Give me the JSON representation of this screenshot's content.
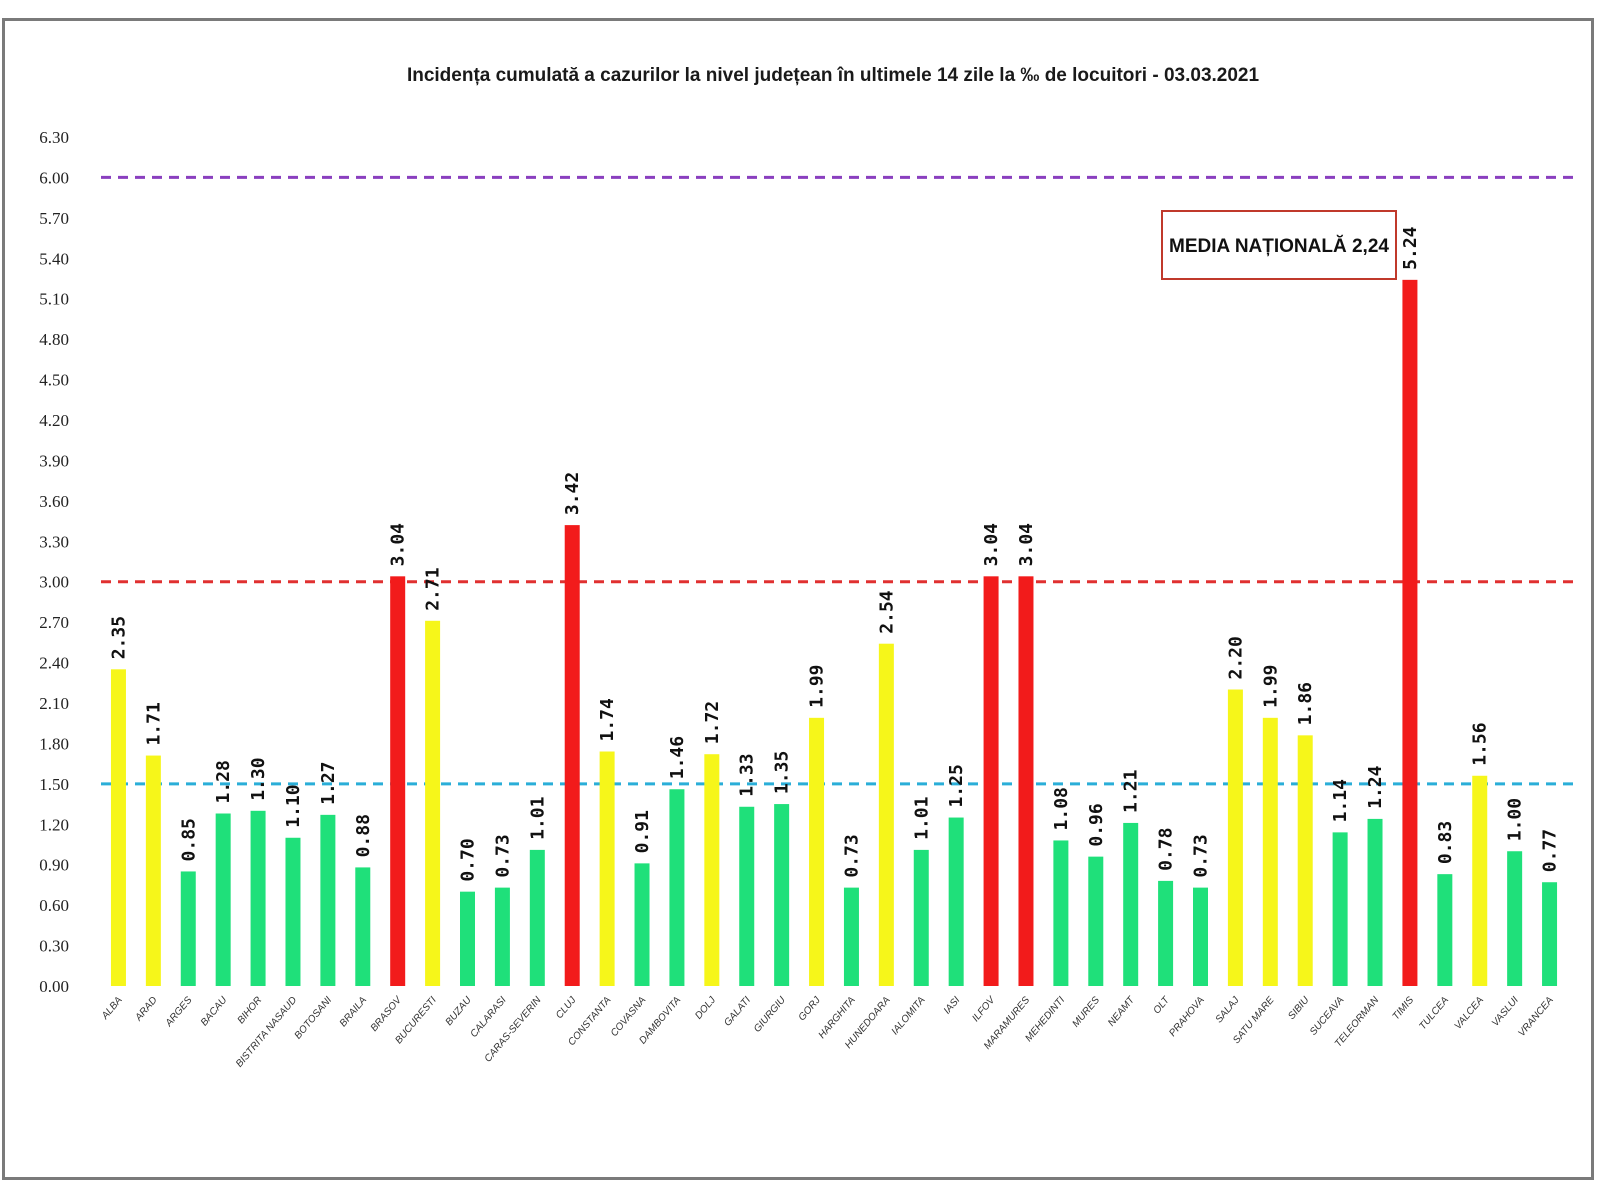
{
  "colors": {
    "green": "#1fe07a",
    "yellow": "#f6f61a",
    "red": "#f21b1b",
    "line_purple": "#8a3fbf",
    "line_red": "#e03030",
    "line_cyan": "#2aaed8",
    "annotation_border": "#c0392b"
  },
  "chart_data": {
    "type": "bar",
    "title": "Incidența cumulată a cazurilor la nivel județean în ultimele 14 zile la ‰ de locuitori - 03.03.2021",
    "xlabel": "",
    "ylabel": "",
    "ylim": [
      0,
      6.3
    ],
    "yticks": [
      "0.00",
      "0.30",
      "0.60",
      "0.90",
      "1.20",
      "1.50",
      "1.80",
      "2.10",
      "2.40",
      "2.70",
      "3.00",
      "3.30",
      "3.60",
      "3.90",
      "4.20",
      "4.50",
      "4.80",
      "5.10",
      "5.40",
      "5.70",
      "6.00",
      "6.30"
    ],
    "grid": false,
    "categories": [
      "ALBA",
      "ARAD",
      "ARGES",
      "BACAU",
      "BIHOR",
      "BISTRITA NASAUD",
      "BOTOSANI",
      "BRAILA",
      "BRASOV",
      "BUCURESTI",
      "BUZAU",
      "CALARASI",
      "CARAS-SEVERIN",
      "CLUJ",
      "CONSTANTA",
      "COVASNA",
      "DAMBOVITA",
      "DOLJ",
      "GALATI",
      "GIURGIU",
      "GORJ",
      "HARGHITA",
      "HUNEDOARA",
      "IALOMITA",
      "IASI",
      "ILFOV",
      "MARAMURES",
      "MEHEDINTI",
      "MURES",
      "NEAMT",
      "OLT",
      "PRAHOVA",
      "SALAJ",
      "SATU MARE",
      "SIBIU",
      "SUCEAVA",
      "TELEORMAN",
      "TIMIS",
      "TULCEA",
      "VALCEA",
      "VASLUI",
      "VRANCEA"
    ],
    "values": [
      2.35,
      1.71,
      0.85,
      1.28,
      1.3,
      1.1,
      1.27,
      0.88,
      3.04,
      2.71,
      0.7,
      0.73,
      1.01,
      3.42,
      1.74,
      0.91,
      1.46,
      1.72,
      1.33,
      1.35,
      1.99,
      0.73,
      2.54,
      1.01,
      1.25,
      3.04,
      3.04,
      1.08,
      0.96,
      1.21,
      0.78,
      0.73,
      2.2,
      1.99,
      1.86,
      1.14,
      1.24,
      5.24,
      0.83,
      1.56,
      1.0,
      0.77
    ],
    "value_labels": [
      "2.35",
      "1.71",
      "0.85",
      "1.28",
      "1.30",
      "1.10",
      "1.27",
      "0.88",
      "3.04",
      "2.71",
      "0.70",
      "0.73",
      "1.01",
      "3.42",
      "1.74",
      "0.91",
      "1.46",
      "1.72",
      "1.33",
      "1.35",
      "1.99",
      "0.73",
      "2.54",
      "1.01",
      "1.25",
      "3.04",
      "3.04",
      "1.08",
      "0.96",
      "1.21",
      "0.78",
      "0.73",
      "2.20",
      "1.99",
      "1.86",
      "1.14",
      "1.24",
      "5.24",
      "0.83",
      "1.56",
      "1.00",
      "0.77"
    ],
    "bar_colors": [
      "yellow",
      "yellow",
      "green",
      "green",
      "green",
      "green",
      "green",
      "green",
      "red",
      "yellow",
      "green",
      "green",
      "green",
      "red",
      "yellow",
      "green",
      "green",
      "yellow",
      "green",
      "green",
      "yellow",
      "green",
      "yellow",
      "green",
      "green",
      "red",
      "red",
      "green",
      "green",
      "green",
      "green",
      "green",
      "yellow",
      "yellow",
      "yellow",
      "green",
      "green",
      "red",
      "green",
      "yellow",
      "green",
      "green"
    ],
    "reference_lines": [
      {
        "value": 6.0,
        "color": "line_purple"
      },
      {
        "value": 3.0,
        "color": "line_red"
      },
      {
        "value": 1.5,
        "color": "line_cyan"
      }
    ],
    "annotation": "MEDIA NAȚIONALĂ 2,24"
  }
}
